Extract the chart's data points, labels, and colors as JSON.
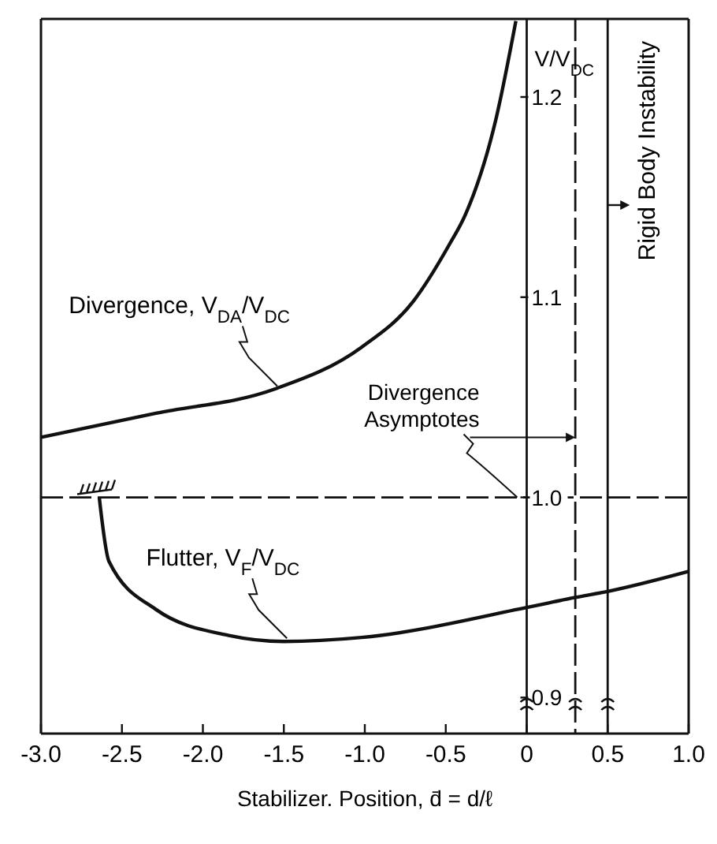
{
  "chart_data": {
    "type": "line",
    "xlabel": "Stabilizer. Position, d̄ = d/ℓ",
    "ylabel": "V/V$_{DC}$",
    "xlim": [
      -3.0,
      1.0
    ],
    "ylim": [
      0.882,
      1.239
    ],
    "xticks": [
      {
        "value": -3,
        "label": "-3.0"
      },
      {
        "value": -2.5,
        "label": "-2.5"
      },
      {
        "value": -2,
        "label": "-2.0"
      },
      {
        "value": -1.5,
        "label": "-1.5"
      },
      {
        "value": -1,
        "label": "-1.0"
      },
      {
        "value": -0.5,
        "label": "-0.5"
      },
      0,
      0.5,
      {
        "value": 1,
        "label": "1.0"
      }
    ],
    "yticks": [
      0.9,
      {
        "value": 1,
        "label": "1.0"
      },
      1.1,
      1.2
    ],
    "series": [
      {
        "name": "Divergence, V$_{DA}$/V$_{DC}$",
        "color": "#111111",
        "x": [
          -3.0,
          -2.29,
          -1.56,
          -1.02,
          -0.7,
          -0.48,
          -0.38,
          -0.19,
          -0.067
        ],
        "values": [
          1.03,
          1.042,
          1.054,
          1.075,
          1.098,
          1.126,
          1.141,
          1.189,
          1.238
        ]
      },
      {
        "name": "Flutter, V$_{F}$/V$_{DC}$",
        "color": "#111111",
        "x": [
          -2.64,
          -2.58,
          -2.29,
          -1.84,
          -1.5,
          -1.02,
          0,
          0.3,
          0.5,
          1.0
        ],
        "values": [
          1.0,
          0.968,
          0.944,
          0.931,
          0.928,
          0.93,
          0.945,
          0.95,
          0.953,
          0.963
        ]
      }
    ],
    "ref_lines": [
      {
        "axis": "y",
        "value": 1.0,
        "label": null,
        "line_style": "dashed"
      },
      {
        "axis": "x",
        "value": 0.3,
        "label": null,
        "line_style": "dashed"
      },
      {
        "axis": "x",
        "value": 0.5,
        "label": "Rigid Body Instability",
        "line_style": "solid"
      }
    ],
    "annotations": [
      {
        "text": "Divergence Asymptotes",
        "x": 0.3,
        "y": 1.03
      }
    ]
  }
}
